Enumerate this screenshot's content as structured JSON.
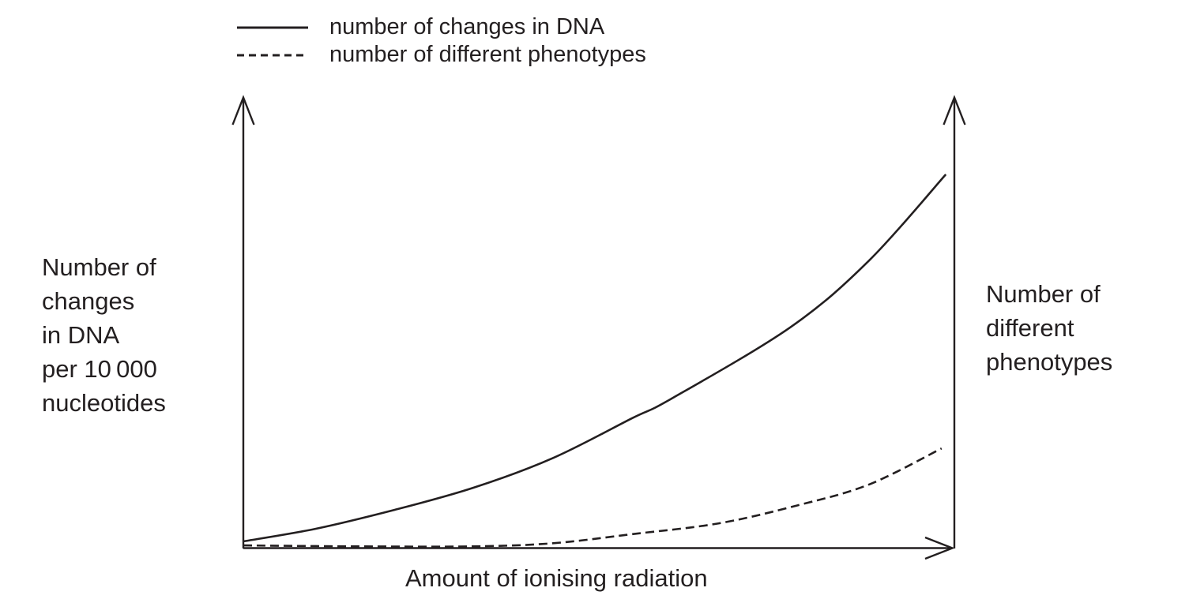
{
  "figure": {
    "background": "#ffffff",
    "ink_color": "#231f20"
  },
  "legend": {
    "items": [
      {
        "label": "number of changes in DNA",
        "line_style": "solid"
      },
      {
        "label": "number of different phenotypes",
        "line_style": "dashed"
      }
    ]
  },
  "axes": {
    "left_label_lines": [
      "Number of",
      "changes",
      "in DNA",
      "per 10 000",
      "nucleotides"
    ],
    "right_label_lines": [
      "Number of",
      "different",
      "phenotypes"
    ],
    "x_label": "Amount of ionising radiation"
  },
  "chart_data": {
    "type": "line",
    "title": "",
    "xlabel": "Amount of ionising radiation",
    "ylabel_left": "Number of changes in DNA per 10 000 nucleotides",
    "ylabel_right": "Number of different phenotypes",
    "x_axis": {
      "range": [
        0,
        1
      ],
      "ticks": [],
      "note": "unlabelled qualitative axis with right arrow"
    },
    "y_axis": {
      "range": [
        0,
        1
      ],
      "ticks": [],
      "note": "two unlabelled qualitative vertical axes with up arrows"
    },
    "grid": false,
    "legend_position": "top-left",
    "series": [
      {
        "name": "number of changes in DNA",
        "style": "solid",
        "axis": "left",
        "points": [
          [
            0,
            0.014
          ],
          [
            0.102,
            0.042
          ],
          [
            0.213,
            0.084
          ],
          [
            0.324,
            0.133
          ],
          [
            0.436,
            0.199
          ],
          [
            0.547,
            0.287
          ],
          [
            0.602,
            0.33
          ],
          [
            0.769,
            0.488
          ],
          [
            0.88,
            0.636
          ],
          [
            0.988,
            0.827
          ]
        ]
      },
      {
        "name": "number of different phenotypes",
        "style": "dashed",
        "axis": "right",
        "points": [
          [
            0,
            0.005
          ],
          [
            0.158,
            0.003
          ],
          [
            0.324,
            0.003
          ],
          [
            0.436,
            0.01
          ],
          [
            0.547,
            0.03
          ],
          [
            0.669,
            0.054
          ],
          [
            0.78,
            0.094
          ],
          [
            0.88,
            0.14
          ],
          [
            0.982,
            0.22
          ]
        ]
      }
    ]
  }
}
